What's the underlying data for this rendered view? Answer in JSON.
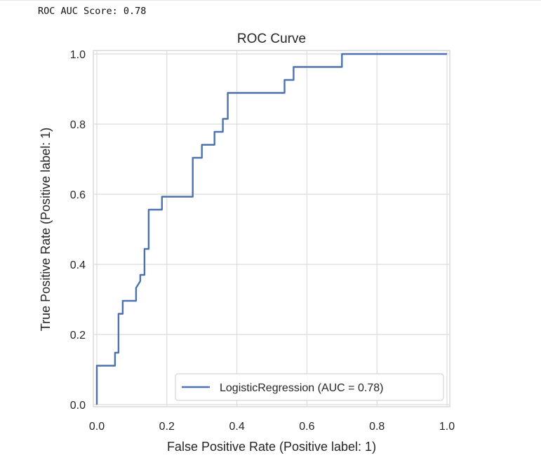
{
  "output": {
    "text": "ROC AUC Score: 0.78"
  },
  "chart_data": {
    "type": "line",
    "title": "ROC Curve",
    "xlabel": "False Positive Rate (Positive label: 1)",
    "ylabel": "True Positive Rate (Positive label: 1)",
    "xlim": [
      0.0,
      1.0
    ],
    "ylim": [
      0.0,
      1.0
    ],
    "x_ticks": [
      "0.0",
      "0.2",
      "0.4",
      "0.6",
      "0.8",
      "1.0"
    ],
    "y_ticks": [
      "0.0",
      "0.2",
      "0.4",
      "0.6",
      "0.8",
      "1.0"
    ],
    "grid": true,
    "legend_position": "lower-right",
    "series": [
      {
        "name": "LogisticRegression (AUC = 0.78)",
        "color": "#4c72b0",
        "x": [
          0.0,
          0.0,
          0.0,
          0.052,
          0.052,
          0.062,
          0.062,
          0.074,
          0.074,
          0.112,
          0.112,
          0.124,
          0.124,
          0.136,
          0.136,
          0.148,
          0.148,
          0.186,
          0.186,
          0.274,
          0.274,
          0.3,
          0.3,
          0.336,
          0.336,
          0.36,
          0.36,
          0.374,
          0.374,
          0.536,
          0.536,
          0.562,
          0.562,
          0.7,
          0.7,
          1.0
        ],
        "y": [
          0.0,
          0.0,
          0.111,
          0.111,
          0.148,
          0.148,
          0.259,
          0.259,
          0.296,
          0.296,
          0.333,
          0.352,
          0.37,
          0.37,
          0.444,
          0.444,
          0.556,
          0.556,
          0.593,
          0.593,
          0.704,
          0.704,
          0.741,
          0.741,
          0.778,
          0.778,
          0.815,
          0.815,
          0.889,
          0.889,
          0.926,
          0.926,
          0.963,
          0.963,
          1.0,
          1.0
        ]
      }
    ]
  }
}
